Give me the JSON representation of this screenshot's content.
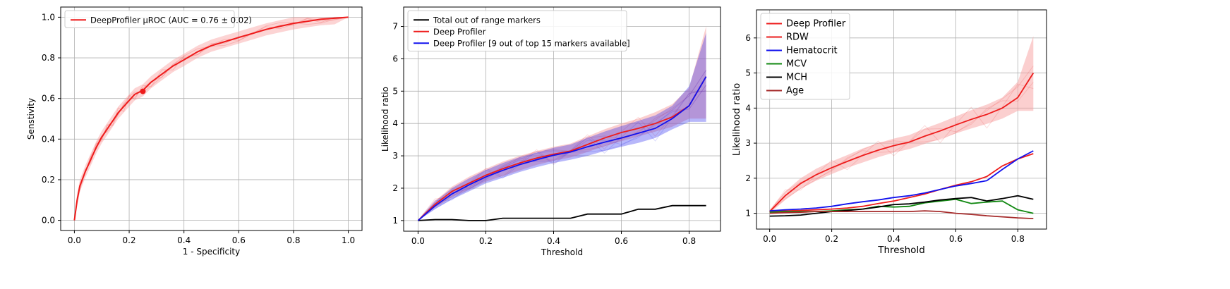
{
  "chart_data": [
    {
      "type": "line",
      "xlabel": "1 - Specificity",
      "ylabel": "Senstivity",
      "xlim": [
        -0.05,
        1.05
      ],
      "ylim": [
        -0.05,
        1.05
      ],
      "xticks": [
        0.0,
        0.2,
        0.4,
        0.6,
        0.8,
        1.0
      ],
      "yticks": [
        0.0,
        0.2,
        0.4,
        0.6,
        0.8,
        1.0
      ],
      "xtick_labels": [
        "0.0",
        "0.2",
        "0.4",
        "0.6",
        "0.8",
        "1.0"
      ],
      "ytick_labels": [
        "0.0",
        "0.2",
        "0.4",
        "0.6",
        "0.8",
        "1.0"
      ],
      "grid": true,
      "legend_position": "top-left",
      "legend": [
        "DeepProfiler μROC (AUC = 0.76 ± 0.02)"
      ],
      "series": [
        {
          "name": "DeepProfiler μROC (AUC = 0.76 ± 0.02)",
          "color": "#ee1c1c",
          "x": [
            0,
            0.01,
            0.02,
            0.04,
            0.06,
            0.08,
            0.1,
            0.12,
            0.14,
            0.16,
            0.18,
            0.2,
            0.22,
            0.25,
            0.28,
            0.32,
            0.36,
            0.4,
            0.45,
            0.5,
            0.55,
            0.6,
            0.65,
            0.7,
            0.75,
            0.8,
            0.85,
            0.9,
            0.95,
            1.0
          ],
          "y": [
            0,
            0.1,
            0.17,
            0.24,
            0.3,
            0.36,
            0.41,
            0.45,
            0.49,
            0.53,
            0.56,
            0.59,
            0.62,
            0.64,
            0.68,
            0.72,
            0.76,
            0.79,
            0.83,
            0.86,
            0.88,
            0.9,
            0.92,
            0.94,
            0.955,
            0.97,
            0.98,
            0.99,
            0.995,
            1.0
          ],
          "band": 0.03
        }
      ],
      "operating_point": {
        "x": 0.25,
        "y": 0.635
      }
    },
    {
      "type": "line",
      "xlabel": "Threshold",
      "ylabel": "Likelihood ratio",
      "xlim": [
        -0.0425,
        0.8925
      ],
      "ylim": [
        0.67,
        7.6
      ],
      "xticks": [
        0.0,
        0.2,
        0.4,
        0.6,
        0.8
      ],
      "yticks": [
        1,
        2,
        3,
        4,
        5,
        6,
        7
      ],
      "xtick_labels": [
        "0.0",
        "0.2",
        "0.4",
        "0.6",
        "0.8"
      ],
      "ytick_labels": [
        "1",
        "2",
        "3",
        "4",
        "5",
        "6",
        "7"
      ],
      "grid": true,
      "legend_position": "top-left",
      "legend": [
        "Total out of range markers",
        "Deep Profiler",
        "Deep Profiler [9 out of top 15 markers available]"
      ],
      "x": [
        0,
        0.05,
        0.1,
        0.15,
        0.2,
        0.25,
        0.3,
        0.35,
        0.4,
        0.45,
        0.5,
        0.55,
        0.6,
        0.65,
        0.7,
        0.75,
        0.8,
        0.85
      ],
      "series": [
        {
          "name": "Total out of range markers",
          "color": "#000000",
          "values": [
            1.0,
            1.03,
            1.03,
            1.0,
            1.0,
            1.07,
            1.07,
            1.07,
            1.07,
            1.07,
            1.2,
            1.2,
            1.2,
            1.35,
            1.35,
            1.46,
            1.46,
            1.46
          ]
        },
        {
          "name": "Deep Profiler",
          "color": "#ee1c1c",
          "values": [
            1.0,
            1.5,
            1.9,
            2.15,
            2.4,
            2.6,
            2.78,
            2.93,
            3.05,
            3.15,
            3.35,
            3.55,
            3.72,
            3.85,
            4.0,
            4.2,
            4.55,
            5.45
          ],
          "band_low": [
            1.0,
            1.4,
            1.72,
            1.95,
            2.2,
            2.38,
            2.55,
            2.72,
            2.85,
            2.95,
            3.12,
            3.3,
            3.45,
            3.6,
            3.75,
            3.9,
            4.15,
            4.15
          ],
          "band_high": [
            1.0,
            1.6,
            2.05,
            2.35,
            2.6,
            2.82,
            3.0,
            3.15,
            3.28,
            3.38,
            3.6,
            3.82,
            4.0,
            4.15,
            4.35,
            4.6,
            5.1,
            7.0
          ]
        },
        {
          "name": "Deep Profiler [9 out of top 15 markers available]",
          "color": "#1111ee",
          "values": [
            1.0,
            1.45,
            1.82,
            2.1,
            2.35,
            2.55,
            2.73,
            2.88,
            3.02,
            3.12,
            3.28,
            3.42,
            3.55,
            3.7,
            3.85,
            4.15,
            4.55,
            5.45
          ],
          "band_low": [
            1.0,
            1.35,
            1.65,
            1.9,
            2.15,
            2.32,
            2.5,
            2.65,
            2.78,
            2.88,
            3.0,
            3.15,
            3.28,
            3.4,
            3.55,
            3.82,
            4.05,
            4.05
          ],
          "band_high": [
            1.0,
            1.58,
            2.0,
            2.3,
            2.56,
            2.78,
            2.96,
            3.1,
            3.25,
            3.35,
            3.55,
            3.75,
            3.92,
            4.08,
            4.25,
            4.55,
            5.15,
            6.8
          ]
        }
      ]
    },
    {
      "type": "line",
      "xlabel": "Threshold",
      "ylabel": "Likelihood ratio",
      "xlim": [
        -0.0425,
        0.8925
      ],
      "ylim": [
        0.55,
        6.8
      ],
      "xticks": [
        0.0,
        0.2,
        0.4,
        0.6,
        0.8
      ],
      "yticks": [
        1,
        2,
        3,
        4,
        5,
        6
      ],
      "xtick_labels": [
        "0.0",
        "0.2",
        "0.4",
        "0.6",
        "0.8"
      ],
      "ytick_labels": [
        "1",
        "2",
        "3",
        "4",
        "5",
        "6"
      ],
      "grid": true,
      "legend_position": "top-left",
      "legend": [
        "Deep Profiler",
        "RDW",
        "Hematocrit",
        "MCV",
        "MCH",
        "Age"
      ],
      "x": [
        0,
        0.05,
        0.1,
        0.15,
        0.2,
        0.25,
        0.3,
        0.35,
        0.4,
        0.45,
        0.5,
        0.55,
        0.6,
        0.65,
        0.7,
        0.75,
        0.8,
        0.85
      ],
      "series": [
        {
          "name": "Deep Profiler",
          "color": "#ee1c1c",
          "values": [
            1.05,
            1.5,
            1.85,
            2.1,
            2.3,
            2.48,
            2.65,
            2.8,
            2.93,
            3.03,
            3.2,
            3.35,
            3.52,
            3.68,
            3.82,
            4.0,
            4.3,
            5.0
          ],
          "band_low": [
            1.0,
            1.38,
            1.7,
            1.93,
            2.12,
            2.3,
            2.45,
            2.6,
            2.73,
            2.83,
            2.98,
            3.12,
            3.28,
            3.42,
            3.55,
            3.7,
            3.92,
            3.92
          ],
          "band_high": [
            1.1,
            1.62,
            2.0,
            2.27,
            2.48,
            2.66,
            2.85,
            3.0,
            3.13,
            3.23,
            3.42,
            3.58,
            3.76,
            3.94,
            4.1,
            4.3,
            4.75,
            6.05
          ]
        },
        {
          "name": "RDW",
          "color": "#ee1c1c",
          "values": [
            1.05,
            1.07,
            1.08,
            1.1,
            1.12,
            1.15,
            1.2,
            1.28,
            1.35,
            1.45,
            1.55,
            1.68,
            1.8,
            1.9,
            2.05,
            2.35,
            2.55,
            2.7
          ]
        },
        {
          "name": "Hematocrit",
          "color": "#1111ee",
          "values": [
            1.07,
            1.1,
            1.12,
            1.15,
            1.2,
            1.27,
            1.33,
            1.38,
            1.45,
            1.5,
            1.58,
            1.68,
            1.78,
            1.85,
            1.93,
            2.25,
            2.55,
            2.78
          ]
        },
        {
          "name": "MCV",
          "color": "#118811",
          "values": [
            1.03,
            1.05,
            1.05,
            1.05,
            1.07,
            1.1,
            1.12,
            1.2,
            1.18,
            1.2,
            1.3,
            1.35,
            1.4,
            1.28,
            1.32,
            1.35,
            1.1,
            1.0
          ]
        },
        {
          "name": "MCH",
          "color": "#000000",
          "values": [
            0.92,
            0.93,
            0.95,
            1.0,
            1.05,
            1.08,
            1.12,
            1.18,
            1.25,
            1.27,
            1.32,
            1.38,
            1.42,
            1.45,
            1.35,
            1.42,
            1.5,
            1.4
          ]
        },
        {
          "name": "Age",
          "color": "#a52a2a",
          "values": [
            1.0,
            1.02,
            1.03,
            1.05,
            1.05,
            1.05,
            1.05,
            1.05,
            1.05,
            1.05,
            1.07,
            1.05,
            1.0,
            0.97,
            0.93,
            0.9,
            0.87,
            0.85
          ]
        }
      ]
    }
  ],
  "colors": {
    "red": "#ee1c1c",
    "red_band": "#f8a0a0",
    "blue": "#1111ee",
    "purple_band": "#9a5fc6",
    "grid": "#b0b0b0"
  }
}
